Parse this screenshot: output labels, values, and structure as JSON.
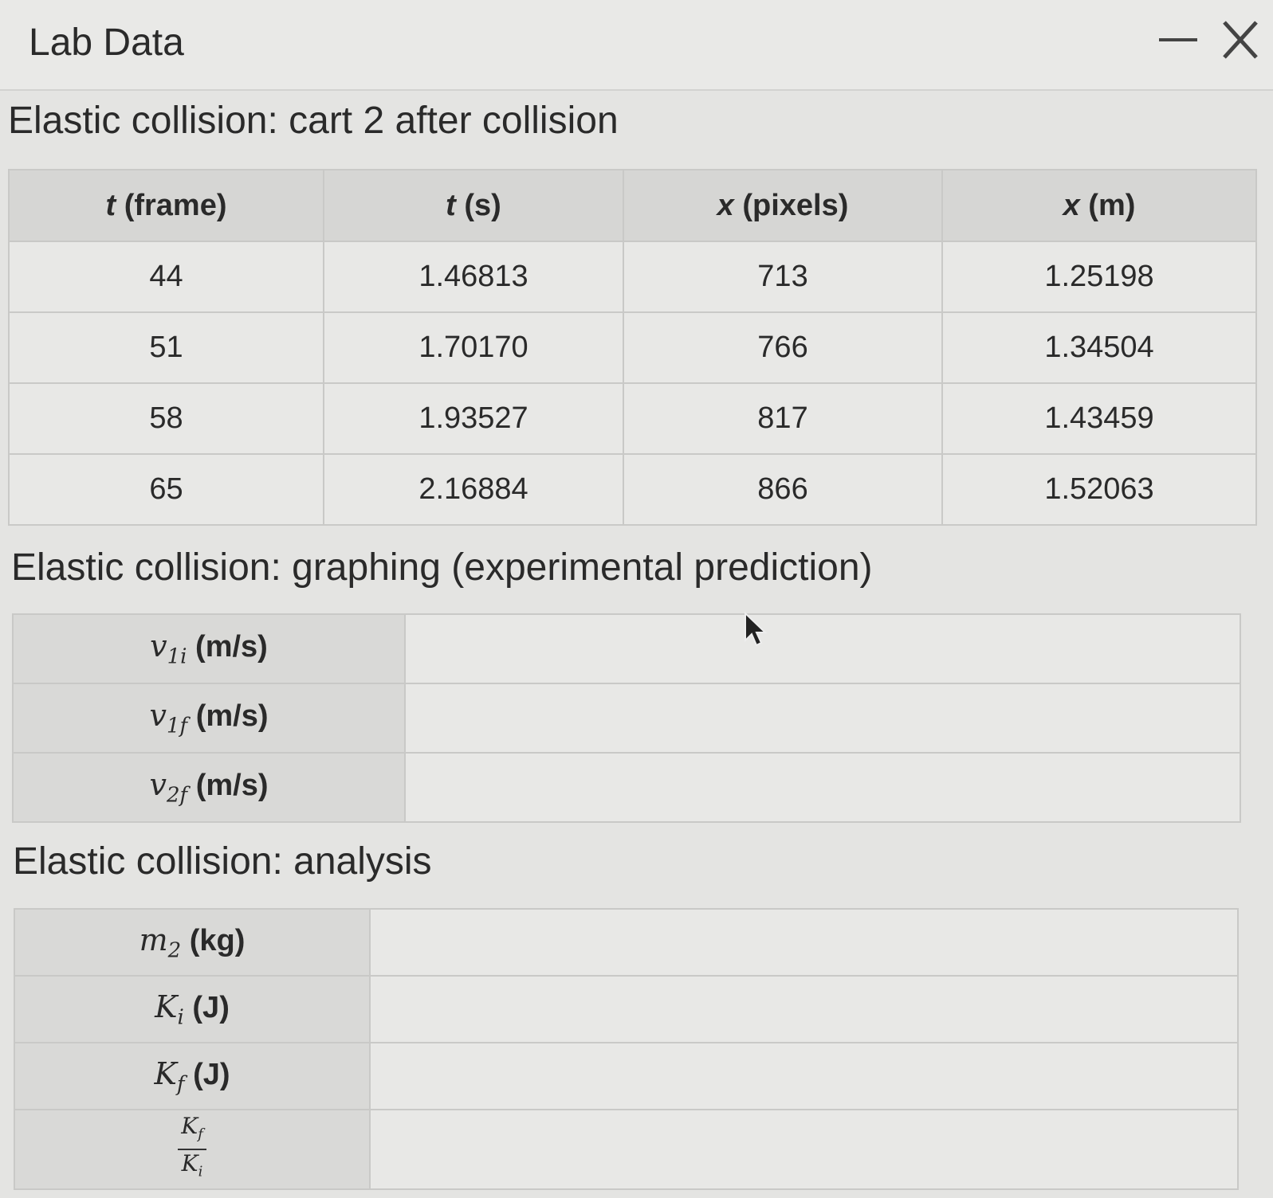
{
  "header": {
    "title": "Lab Data"
  },
  "sections": [
    {
      "title": "Elastic collision: cart 2 after collision",
      "table": {
        "columns": [
          {
            "symbol": "t",
            "unit": "(frame)"
          },
          {
            "symbol": "t",
            "unit": "(s)"
          },
          {
            "symbol": "x",
            "unit": "(pixels)"
          },
          {
            "symbol": "x",
            "unit": "(m)"
          }
        ],
        "rows": [
          [
            "44",
            "1.46813",
            "713",
            "1.25198"
          ],
          [
            "51",
            "1.70170",
            "766",
            "1.34504"
          ],
          [
            "58",
            "1.93527",
            "817",
            "1.43459"
          ],
          [
            "65",
            "2.16884",
            "866",
            "1.52063"
          ]
        ]
      }
    },
    {
      "title": "Elastic collision: graphing (experimental prediction)",
      "table": {
        "rows": [
          {
            "symbol": "v",
            "sub": "1i",
            "unit": "(m/s)"
          },
          {
            "symbol": "v",
            "sub": "1f",
            "unit": "(m/s)"
          },
          {
            "symbol": "v",
            "sub": "2f",
            "unit": "(m/s)"
          }
        ]
      }
    },
    {
      "title": "Elastic collision: analysis",
      "table": {
        "rows": [
          {
            "symbol": "m",
            "sub": "2",
            "unit": "(kg)"
          },
          {
            "symbol": "K",
            "sub": "i",
            "unit": "(J)"
          },
          {
            "symbol": "K",
            "sub": "f",
            "unit": "(J)"
          },
          {
            "numerator": {
              "symbol": "K",
              "sub": "f"
            },
            "denominator": {
              "symbol": "K",
              "sub": "i"
            }
          }
        ]
      }
    }
  ]
}
